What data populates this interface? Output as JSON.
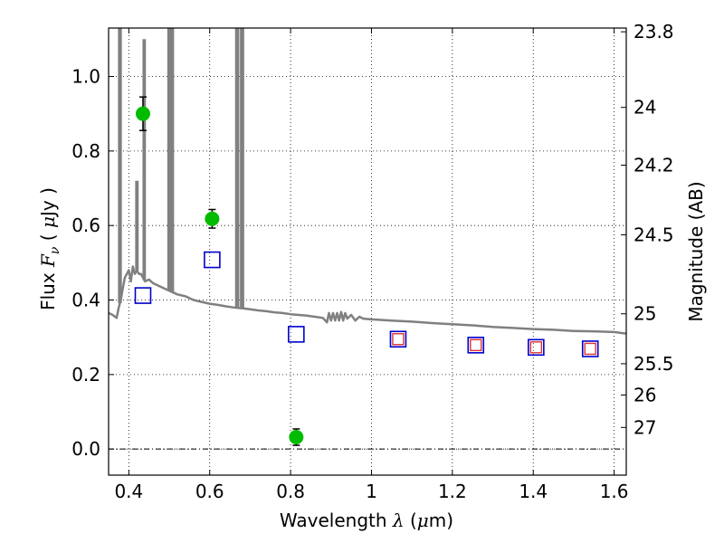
{
  "chart_data": {
    "type": "scatter",
    "xlabel": {
      "text": "Wavelength",
      "symbol": "λ",
      "unit_open": "(",
      "unit_mu": "μ",
      "unit_rest": "m)"
    },
    "ylabel": {
      "text": "Flux",
      "symbol": "F",
      "subscript": "ν",
      "unit_open": "(",
      "unit_mu": "μ",
      "unit_rest": "Jy )"
    },
    "y2label": "Magnitude (AB)",
    "xlim": [
      0.35,
      1.63
    ],
    "ylim": [
      -0.07,
      1.13
    ],
    "grid": true,
    "xticks": [
      0.4,
      0.6,
      0.8,
      1.0,
      1.2,
      1.4,
      1.6
    ],
    "xtick_labels": [
      "0.4",
      "0.6",
      "0.8",
      "1",
      "1.2",
      "1.4",
      "1.6"
    ],
    "yticks": [
      0.0,
      0.2,
      0.4,
      0.6,
      0.8,
      1.0
    ],
    "ytick_labels": [
      "0.0",
      "0.2",
      "0.4",
      "0.6",
      "0.8",
      "1.0"
    ],
    "y2ticks": [
      {
        "flux": 1.12,
        "label": "23.8"
      },
      {
        "flux": 0.917,
        "label": "24"
      },
      {
        "flux": 0.762,
        "label": "24.2"
      },
      {
        "flux": 0.575,
        "label": "24.5"
      },
      {
        "flux": 0.363,
        "label": "25"
      },
      {
        "flux": 0.229,
        "label": "25.5"
      },
      {
        "flux": 0.145,
        "label": "26"
      },
      {
        "flux": 0.058,
        "label": "27"
      }
    ],
    "series": [
      {
        "name": "observed",
        "marker": "circle",
        "color": "#00bb00",
        "points": [
          {
            "x": 0.435,
            "y": 0.9,
            "err": 0.045
          },
          {
            "x": 0.606,
            "y": 0.618,
            "err": 0.025
          },
          {
            "x": 0.814,
            "y": 0.032,
            "err": 0.022
          }
        ]
      },
      {
        "name": "model_blue",
        "marker": "square",
        "color": "#0000cc",
        "points": [
          {
            "x": 0.435,
            "y": 0.412
          },
          {
            "x": 0.606,
            "y": 0.508
          },
          {
            "x": 0.814,
            "y": 0.308
          },
          {
            "x": 1.066,
            "y": 0.295
          },
          {
            "x": 1.258,
            "y": 0.279
          },
          {
            "x": 1.407,
            "y": 0.273
          },
          {
            "x": 1.541,
            "y": 0.269
          }
        ]
      },
      {
        "name": "model_red",
        "marker": "square-small",
        "color": "#dd3333",
        "points": [
          {
            "x": 1.066,
            "y": 0.295
          },
          {
            "x": 1.258,
            "y": 0.279
          },
          {
            "x": 1.407,
            "y": 0.273
          },
          {
            "x": 1.541,
            "y": 0.269
          }
        ]
      }
    ],
    "spectrum": {
      "color": "#808080",
      "points": [
        [
          0.35,
          0.365
        ],
        [
          0.36,
          0.36
        ],
        [
          0.37,
          0.352
        ],
        [
          0.375,
          0.38
        ],
        [
          0.38,
          0.4
        ],
        [
          0.385,
          0.43
        ],
        [
          0.39,
          0.46
        ],
        [
          0.395,
          0.47
        ],
        [
          0.4,
          0.48
        ],
        [
          0.405,
          0.45
        ],
        [
          0.41,
          0.49
        ],
        [
          0.415,
          0.47
        ],
        [
          0.42,
          0.48
        ],
        [
          0.425,
          0.47
        ],
        [
          0.43,
          0.47
        ],
        [
          0.435,
          0.46
        ],
        [
          0.44,
          0.45
        ],
        [
          0.45,
          0.455
        ],
        [
          0.46,
          0.445
        ],
        [
          0.47,
          0.44
        ],
        [
          0.48,
          0.435
        ],
        [
          0.49,
          0.43
        ],
        [
          0.5,
          0.425
        ],
        [
          0.52,
          0.415
        ],
        [
          0.54,
          0.41
        ],
        [
          0.56,
          0.4
        ],
        [
          0.58,
          0.395
        ],
        [
          0.6,
          0.39
        ],
        [
          0.62,
          0.387
        ],
        [
          0.64,
          0.383
        ],
        [
          0.66,
          0.38
        ],
        [
          0.68,
          0.378
        ],
        [
          0.7,
          0.375
        ],
        [
          0.72,
          0.372
        ],
        [
          0.74,
          0.37
        ],
        [
          0.76,
          0.367
        ],
        [
          0.78,
          0.365
        ],
        [
          0.8,
          0.362
        ],
        [
          0.82,
          0.36
        ],
        [
          0.84,
          0.358
        ],
        [
          0.86,
          0.355
        ],
        [
          0.88,
          0.352
        ],
        [
          0.89,
          0.34
        ],
        [
          0.895,
          0.365
        ],
        [
          0.9,
          0.345
        ],
        [
          0.905,
          0.365
        ],
        [
          0.91,
          0.345
        ],
        [
          0.915,
          0.365
        ],
        [
          0.92,
          0.345
        ],
        [
          0.925,
          0.368
        ],
        [
          0.93,
          0.345
        ],
        [
          0.935,
          0.365
        ],
        [
          0.94,
          0.35
        ],
        [
          0.95,
          0.36
        ],
        [
          0.96,
          0.345
        ],
        [
          0.97,
          0.355
        ],
        [
          0.98,
          0.35
        ],
        [
          1.0,
          0.348
        ],
        [
          1.05,
          0.345
        ],
        [
          1.1,
          0.342
        ],
        [
          1.15,
          0.338
        ],
        [
          1.2,
          0.335
        ],
        [
          1.25,
          0.332
        ],
        [
          1.3,
          0.328
        ],
        [
          1.35,
          0.325
        ],
        [
          1.4,
          0.322
        ],
        [
          1.45,
          0.32
        ],
        [
          1.5,
          0.317
        ],
        [
          1.55,
          0.316
        ],
        [
          1.6,
          0.314
        ],
        [
          1.63,
          0.31
        ]
      ],
      "spikes": [
        {
          "x": 0.378,
          "width": 0.004,
          "top": 1.2
        },
        {
          "x": 0.42,
          "width": 0.003,
          "top": 0.72
        },
        {
          "x": 0.438,
          "width": 0.003,
          "top": 1.1
        },
        {
          "x": 0.5,
          "width": 0.004,
          "top": 1.2
        },
        {
          "x": 0.507,
          "width": 0.004,
          "top": 1.2
        },
        {
          "x": 0.668,
          "width": 0.005,
          "top": 1.2
        },
        {
          "x": 0.68,
          "width": 0.005,
          "top": 1.2
        }
      ]
    }
  }
}
